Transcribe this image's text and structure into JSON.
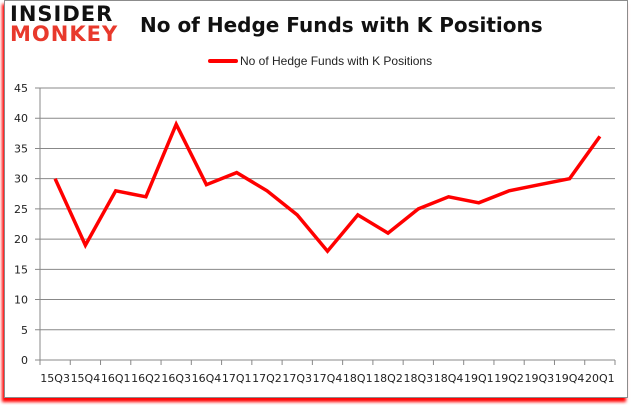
{
  "logo": {
    "line1": "INSIDER",
    "line2": "MONKEY"
  },
  "chart_data": {
    "type": "line",
    "title": "No of Hedge Funds with K Positions",
    "xlabel": "",
    "ylabel": "",
    "categories": [
      "15Q3",
      "15Q4",
      "16Q1",
      "16Q2",
      "16Q3",
      "16Q4",
      "17Q1",
      "17Q2",
      "17Q3",
      "17Q4",
      "18Q1",
      "18Q2",
      "18Q3",
      "18Q4",
      "19Q1",
      "19Q2",
      "19Q3",
      "19Q4",
      "20Q1"
    ],
    "series": [
      {
        "name": "No of Hedge Funds with K Positions",
        "color": "#ff0000",
        "values": [
          30,
          19,
          28,
          27,
          39,
          29,
          31,
          28,
          24,
          18,
          24,
          21,
          25,
          27,
          26,
          28,
          29,
          30,
          37
        ]
      }
    ],
    "ylim": [
      0,
      45
    ],
    "yticks": [
      0,
      5,
      10,
      15,
      20,
      25,
      30,
      35,
      40,
      45
    ],
    "grid": true,
    "legend_position": "top"
  }
}
